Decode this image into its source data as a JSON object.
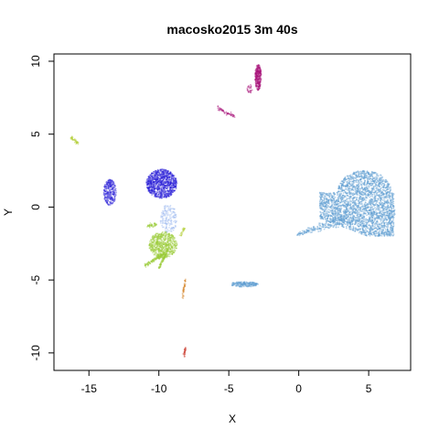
{
  "chart_data": {
    "type": "scatter",
    "title": "macosko2015 3m 40s",
    "xlabel": "X",
    "ylabel": "Y",
    "xlim": [
      -17.5,
      8
    ],
    "ylim": [
      -11.2,
      10.5
    ],
    "xticks": [
      -15,
      -10,
      -5,
      0,
      5
    ],
    "yticks": [
      -10,
      -5,
      0,
      5,
      10
    ],
    "grid": false,
    "legend": "none",
    "clusters": [
      {
        "color": "#5a9bd0",
        "shape": "heart",
        "center": [
          4.7,
          0.3
        ],
        "count": 2600
      },
      {
        "color": "#5a9bd0",
        "shape": "tail",
        "from": [
          -0.1,
          -1.9
        ],
        "to": [
          3.5,
          -0.7
        ],
        "count": 200
      },
      {
        "color": "#5a9bd0",
        "shape": "blob",
        "center": [
          -3.9,
          -5.3
        ],
        "rx": 1.0,
        "ry": 0.18,
        "count": 180
      },
      {
        "color": "#2a1fd6",
        "shape": "blob",
        "center": [
          -9.8,
          1.6
        ],
        "rx": 1.1,
        "ry": 1.0,
        "count": 900
      },
      {
        "color": "#2a1fd6",
        "shape": "blob",
        "center": [
          -13.5,
          1.0
        ],
        "rx": 0.45,
        "ry": 0.9,
        "count": 260
      },
      {
        "color": "#9bb8f0",
        "shape": "blob",
        "center": [
          -9.3,
          -0.8
        ],
        "rx": 0.6,
        "ry": 1.0,
        "count": 160
      },
      {
        "color": "#9ccc3a",
        "shape": "blob",
        "center": [
          -9.7,
          -2.6
        ],
        "rx": 1.0,
        "ry": 0.9,
        "count": 600
      },
      {
        "color": "#9ccc3a",
        "shape": "streak",
        "from": [
          -11.0,
          -4.0
        ],
        "to": [
          -9.6,
          -3.2
        ],
        "count": 120
      },
      {
        "color": "#9ccc3a",
        "shape": "streak",
        "from": [
          -10.0,
          -4.2
        ],
        "to": [
          -9.3,
          -2.8
        ],
        "count": 90
      },
      {
        "color": "#9ccc3a",
        "shape": "streak",
        "from": [
          -10.8,
          -1.3
        ],
        "to": [
          -10.2,
          -1.2
        ],
        "count": 40
      },
      {
        "color": "#b5d13e",
        "shape": "streak",
        "from": [
          -16.3,
          4.8
        ],
        "to": [
          -15.8,
          4.4
        ],
        "count": 45
      },
      {
        "color": "#b5d13e",
        "shape": "streak",
        "from": [
          -8.5,
          -2.0
        ],
        "to": [
          -8.2,
          -1.5
        ],
        "count": 25
      },
      {
        "color": "#a8157a",
        "shape": "blob",
        "center": [
          -2.9,
          8.9
        ],
        "rx": 0.22,
        "ry": 0.9,
        "count": 280
      },
      {
        "color": "#a8157a",
        "shape": "streak",
        "from": [
          -5.8,
          6.8
        ],
        "to": [
          -4.6,
          6.2
        ],
        "count": 55
      },
      {
        "color": "#a8157a",
        "shape": "blob",
        "center": [
          -3.5,
          8.1
        ],
        "rx": 0.18,
        "ry": 0.3,
        "count": 25
      },
      {
        "color": "#d4862b",
        "shape": "streak",
        "from": [
          -8.3,
          -6.2
        ],
        "to": [
          -8.1,
          -5.0
        ],
        "count": 40
      },
      {
        "color": "#c9382a",
        "shape": "streak",
        "from": [
          -8.2,
          -10.2
        ],
        "to": [
          -8.1,
          -9.6
        ],
        "count": 25
      }
    ]
  }
}
